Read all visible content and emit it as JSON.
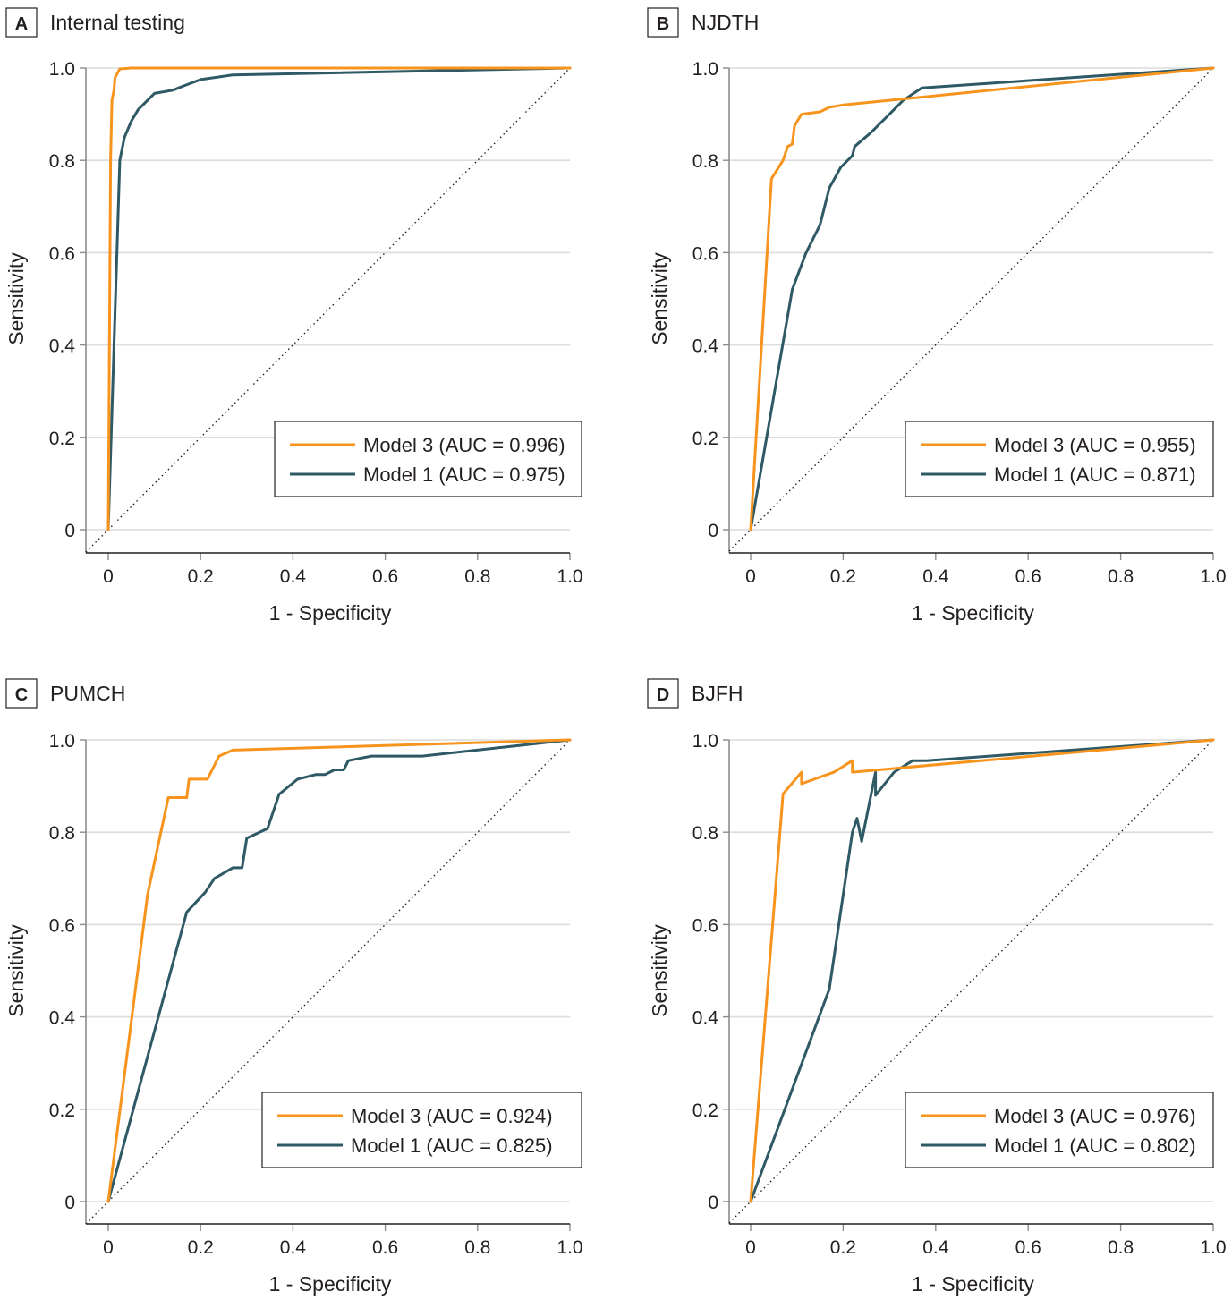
{
  "figure": {
    "colors": {
      "model3": "#f7941d",
      "model1": "#2e5965"
    }
  },
  "chart_data": [
    {
      "type": "line",
      "panel_letter": "A",
      "title": "Internal testing",
      "xlabel": "1 - Specificity",
      "ylabel": "Sensitivity",
      "xlim": [
        0,
        1.0
      ],
      "ylim": [
        0,
        1.0
      ],
      "x_ticks": [
        "0",
        "0.2",
        "0.4",
        "0.6",
        "0.8",
        "1.0"
      ],
      "y_ticks": [
        "0",
        "0.2",
        "0.4",
        "0.6",
        "0.8",
        "1.0"
      ],
      "grid": "horizontal",
      "reference_line": "diagonal",
      "legend_position": "bottom-right",
      "series": [
        {
          "name": "Model 3 (AUC = 0.996)",
          "color_key": "model3",
          "points": [
            [
              0,
              0
            ],
            [
              0.005,
              0.8
            ],
            [
              0.008,
              0.93
            ],
            [
              0.012,
              0.95
            ],
            [
              0.015,
              0.98
            ],
            [
              0.025,
              0.998
            ],
            [
              0.05,
              1.0
            ],
            [
              1,
              1
            ]
          ]
        },
        {
          "name": "Model 1 (AUC = 0.975)",
          "color_key": "model1",
          "points": [
            [
              0,
              0
            ],
            [
              0.025,
              0.8
            ],
            [
              0.035,
              0.85
            ],
            [
              0.05,
              0.885
            ],
            [
              0.065,
              0.91
            ],
            [
              0.08,
              0.925
            ],
            [
              0.1,
              0.945
            ],
            [
              0.14,
              0.952
            ],
            [
              0.16,
              0.96
            ],
            [
              0.2,
              0.975
            ],
            [
              0.27,
              0.985
            ],
            [
              1,
              1
            ]
          ]
        }
      ]
    },
    {
      "type": "line",
      "panel_letter": "B",
      "title": "NJDTH",
      "xlabel": "1 - Specificity",
      "ylabel": "Sensitivity",
      "xlim": [
        0,
        1.0
      ],
      "ylim": [
        0,
        1.0
      ],
      "x_ticks": [
        "0",
        "0.2",
        "0.4",
        "0.6",
        "0.8",
        "1.0"
      ],
      "y_ticks": [
        "0",
        "0.2",
        "0.4",
        "0.6",
        "0.8",
        "1.0"
      ],
      "grid": "horizontal",
      "reference_line": "diagonal",
      "legend_position": "bottom-right",
      "series": [
        {
          "name": "Model 3 (AUC = 0.955)",
          "color_key": "model3",
          "points": [
            [
              0,
              0
            ],
            [
              0.045,
              0.76
            ],
            [
              0.07,
              0.8
            ],
            [
              0.08,
              0.83
            ],
            [
              0.09,
              0.835
            ],
            [
              0.095,
              0.875
            ],
            [
              0.11,
              0.9
            ],
            [
              0.15,
              0.905
            ],
            [
              0.17,
              0.915
            ],
            [
              0.2,
              0.92
            ],
            [
              1,
              1
            ]
          ]
        },
        {
          "name": "Model 1 (AUC = 0.871)",
          "color_key": "model1",
          "points": [
            [
              0,
              0
            ],
            [
              0.09,
              0.52
            ],
            [
              0.12,
              0.6
            ],
            [
              0.15,
              0.66
            ],
            [
              0.17,
              0.74
            ],
            [
              0.195,
              0.785
            ],
            [
              0.22,
              0.81
            ],
            [
              0.225,
              0.83
            ],
            [
              0.26,
              0.86
            ],
            [
              0.29,
              0.89
            ],
            [
              0.33,
              0.93
            ],
            [
              0.37,
              0.957
            ],
            [
              1,
              1
            ]
          ]
        }
      ]
    },
    {
      "type": "line",
      "panel_letter": "C",
      "title": "PUMCH",
      "xlabel": "1 - Specificity",
      "ylabel": "Sensitivity",
      "xlim": [
        0,
        1.0
      ],
      "ylim": [
        0,
        1.0
      ],
      "x_ticks": [
        "0",
        "0.2",
        "0.4",
        "0.6",
        "0.8",
        "1.0"
      ],
      "y_ticks": [
        "0",
        "0.2",
        "0.4",
        "0.6",
        "0.8",
        "1.0"
      ],
      "grid": "horizontal",
      "reference_line": "diagonal",
      "legend_position": "bottom-right",
      "series": [
        {
          "name": "Model 3 (AUC = 0.924)",
          "color_key": "model3",
          "points": [
            [
              0,
              0
            ],
            [
              0.085,
              0.665
            ],
            [
              0.13,
              0.875
            ],
            [
              0.17,
              0.875
            ],
            [
              0.175,
              0.915
            ],
            [
              0.215,
              0.915
            ],
            [
              0.24,
              0.965
            ],
            [
              0.27,
              0.978
            ],
            [
              1,
              1
            ]
          ]
        },
        {
          "name": "Model 1 (AUC = 0.825)",
          "color_key": "model1",
          "points": [
            [
              0,
              0
            ],
            [
              0.17,
              0.627
            ],
            [
              0.21,
              0.67
            ],
            [
              0.23,
              0.7
            ],
            [
              0.27,
              0.723
            ],
            [
              0.29,
              0.723
            ],
            [
              0.3,
              0.787
            ],
            [
              0.345,
              0.808
            ],
            [
              0.37,
              0.882
            ],
            [
              0.41,
              0.915
            ],
            [
              0.45,
              0.925
            ],
            [
              0.47,
              0.925
            ],
            [
              0.49,
              0.935
            ],
            [
              0.51,
              0.935
            ],
            [
              0.52,
              0.955
            ],
            [
              0.57,
              0.965
            ],
            [
              0.68,
              0.965
            ],
            [
              1,
              1
            ]
          ]
        }
      ]
    },
    {
      "type": "line",
      "panel_letter": "D",
      "title": "BJFH",
      "xlabel": "1 - Specificity",
      "ylabel": "Sensitivity",
      "xlim": [
        0,
        1.0
      ],
      "ylim": [
        0,
        1.0
      ],
      "x_ticks": [
        "0",
        "0.2",
        "0.4",
        "0.6",
        "0.8",
        "1.0"
      ],
      "y_ticks": [
        "0",
        "0.2",
        "0.4",
        "0.6",
        "0.8",
        "1.0"
      ],
      "grid": "horizontal",
      "reference_line": "diagonal",
      "legend_position": "bottom-right",
      "series": [
        {
          "name": "Model 3 (AUC = 0.976)",
          "color_key": "model3",
          "points": [
            [
              0,
              0
            ],
            [
              0.07,
              0.883
            ],
            [
              0.11,
              0.93
            ],
            [
              0.11,
              0.905
            ],
            [
              0.18,
              0.93
            ],
            [
              0.22,
              0.955
            ],
            [
              0.22,
              0.93
            ],
            [
              1,
              1
            ]
          ]
        },
        {
          "name": "Model 1 (AUC = 0.802)",
          "color_key": "model1",
          "points": [
            [
              0,
              0
            ],
            [
              0.17,
              0.46
            ],
            [
              0.22,
              0.8
            ],
            [
              0.23,
              0.83
            ],
            [
              0.24,
              0.78
            ],
            [
              0.27,
              0.93
            ],
            [
              0.27,
              0.88
            ],
            [
              0.31,
              0.93
            ],
            [
              0.35,
              0.955
            ],
            [
              0.38,
              0.955
            ],
            [
              1,
              1
            ]
          ]
        }
      ]
    }
  ]
}
